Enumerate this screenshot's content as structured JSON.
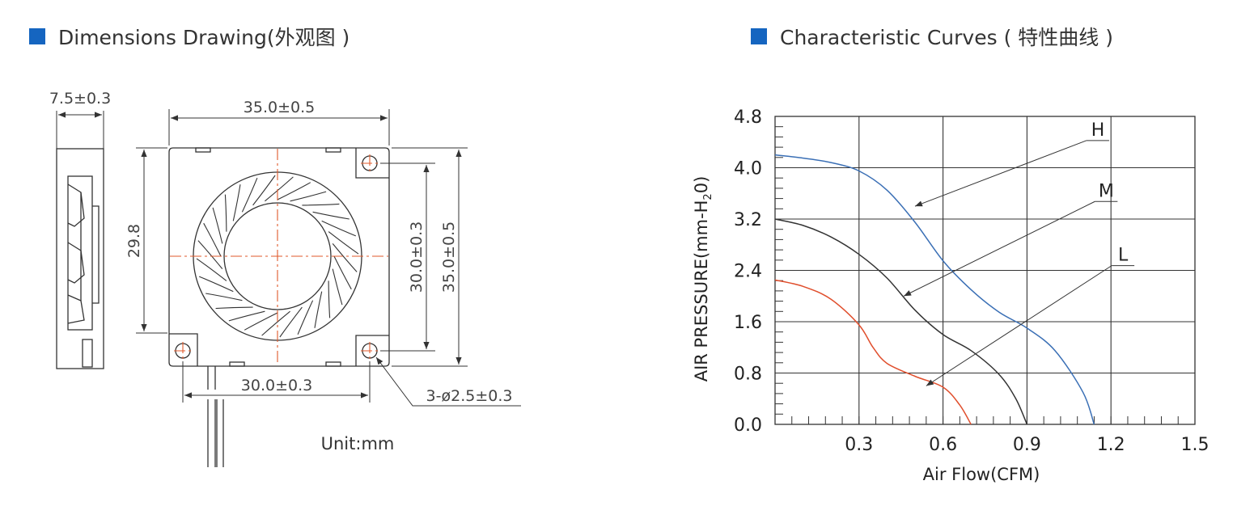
{
  "headers": {
    "left": "Dimensions Drawing(外观图 )",
    "right": "Characteristic Curves ( 特性曲线 )",
    "marker_color": "#1565c0"
  },
  "drawing": {
    "thickness": "7.5±0.3",
    "width": "35.0±0.5",
    "inner_height": "29.8",
    "hole_pitch_v": "30.0±0.3",
    "height": "35.0±0.5",
    "hole_pitch_h": "30.0±0.3",
    "holes": "3-ø2.5±0.3",
    "unit": "Unit:mm",
    "centerline_color": "#e05a2b"
  },
  "chart_data": {
    "type": "line",
    "xlabel": "Air Flow(CFM)",
    "ylabel": "AIR PRESSURE(mm-H",
    "ylabel_sub": "2",
    "ylabel_end": "0)",
    "xlim": [
      0,
      1.5
    ],
    "ylim": [
      0,
      4.8
    ],
    "x_ticks": [
      "0.3",
      "0.6",
      "0.9",
      "1.2",
      "1.5"
    ],
    "y_ticks": [
      "0.0",
      "0.8",
      "1.6",
      "2.4",
      "3.2",
      "4.0",
      "4.8"
    ],
    "grid": true,
    "series": [
      {
        "name": "H",
        "color": "#3a6fb5",
        "points": [
          [
            0,
            4.2
          ],
          [
            0.1,
            4.15
          ],
          [
            0.2,
            4.08
          ],
          [
            0.3,
            3.95
          ],
          [
            0.4,
            3.65
          ],
          [
            0.5,
            3.15
          ],
          [
            0.6,
            2.55
          ],
          [
            0.7,
            2.1
          ],
          [
            0.8,
            1.75
          ],
          [
            0.9,
            1.5
          ],
          [
            1.0,
            1.15
          ],
          [
            1.1,
            0.5
          ],
          [
            1.14,
            0
          ]
        ]
      },
      {
        "name": "M",
        "color": "#333333",
        "points": [
          [
            0,
            3.2
          ],
          [
            0.1,
            3.1
          ],
          [
            0.2,
            2.92
          ],
          [
            0.3,
            2.65
          ],
          [
            0.4,
            2.28
          ],
          [
            0.5,
            1.78
          ],
          [
            0.6,
            1.4
          ],
          [
            0.7,
            1.15
          ],
          [
            0.8,
            0.78
          ],
          [
            0.86,
            0.4
          ],
          [
            0.9,
            0
          ]
        ]
      },
      {
        "name": "L",
        "color": "#e04e2c",
        "points": [
          [
            0,
            2.25
          ],
          [
            0.1,
            2.15
          ],
          [
            0.2,
            1.95
          ],
          [
            0.3,
            1.55
          ],
          [
            0.35,
            1.2
          ],
          [
            0.4,
            0.95
          ],
          [
            0.5,
            0.75
          ],
          [
            0.6,
            0.58
          ],
          [
            0.66,
            0.3
          ],
          [
            0.7,
            0
          ]
        ]
      }
    ]
  }
}
